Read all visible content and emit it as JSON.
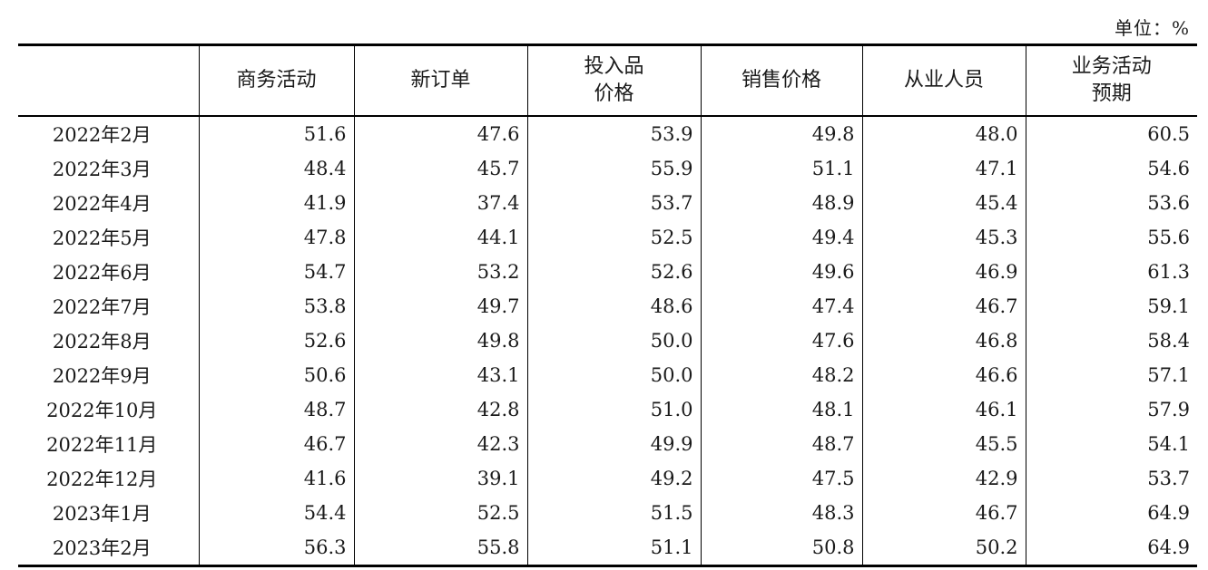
{
  "unit_label": "单位：%",
  "headers": [
    {
      "lines": [
        ""
      ]
    },
    {
      "lines": [
        "商务活动"
      ]
    },
    {
      "lines": [
        "新订单"
      ]
    },
    {
      "lines": [
        "投入品",
        "价格"
      ]
    },
    {
      "lines": [
        "销售价格"
      ]
    },
    {
      "lines": [
        "从业人员"
      ]
    },
    {
      "lines": [
        "业务活动",
        "预期"
      ]
    }
  ],
  "rows": [
    {
      "month": "2022年2月",
      "values": [
        "51.6",
        "47.6",
        "53.9",
        "49.8",
        "48.0",
        "60.5"
      ]
    },
    {
      "month": "2022年3月",
      "values": [
        "48.4",
        "45.7",
        "55.9",
        "51.1",
        "47.1",
        "54.6"
      ]
    },
    {
      "month": "2022年4月",
      "values": [
        "41.9",
        "37.4",
        "53.7",
        "48.9",
        "45.4",
        "53.6"
      ]
    },
    {
      "month": "2022年5月",
      "values": [
        "47.8",
        "44.1",
        "52.5",
        "49.4",
        "45.3",
        "55.6"
      ]
    },
    {
      "month": "2022年6月",
      "values": [
        "54.7",
        "53.2",
        "52.6",
        "49.6",
        "46.9",
        "61.3"
      ]
    },
    {
      "month": "2022年7月",
      "values": [
        "53.8",
        "49.7",
        "48.6",
        "47.4",
        "46.7",
        "59.1"
      ]
    },
    {
      "month": "2022年8月",
      "values": [
        "52.6",
        "49.8",
        "50.0",
        "47.6",
        "46.8",
        "58.4"
      ]
    },
    {
      "month": "2022年9月",
      "values": [
        "50.6",
        "43.1",
        "50.0",
        "48.2",
        "46.6",
        "57.1"
      ]
    },
    {
      "month": "2022年10月",
      "values": [
        "48.7",
        "42.8",
        "51.0",
        "48.1",
        "46.1",
        "57.9"
      ]
    },
    {
      "month": "2022年11月",
      "values": [
        "46.7",
        "42.3",
        "49.9",
        "48.7",
        "45.5",
        "54.1"
      ]
    },
    {
      "month": "2022年12月",
      "values": [
        "41.6",
        "39.1",
        "49.2",
        "47.5",
        "42.9",
        "53.7"
      ]
    },
    {
      "month": "2023年1月",
      "values": [
        "54.4",
        "52.5",
        "51.5",
        "48.3",
        "46.7",
        "64.9"
      ]
    },
    {
      "month": "2023年2月",
      "values": [
        "56.3",
        "55.8",
        "51.1",
        "50.8",
        "50.2",
        "64.9"
      ]
    }
  ]
}
